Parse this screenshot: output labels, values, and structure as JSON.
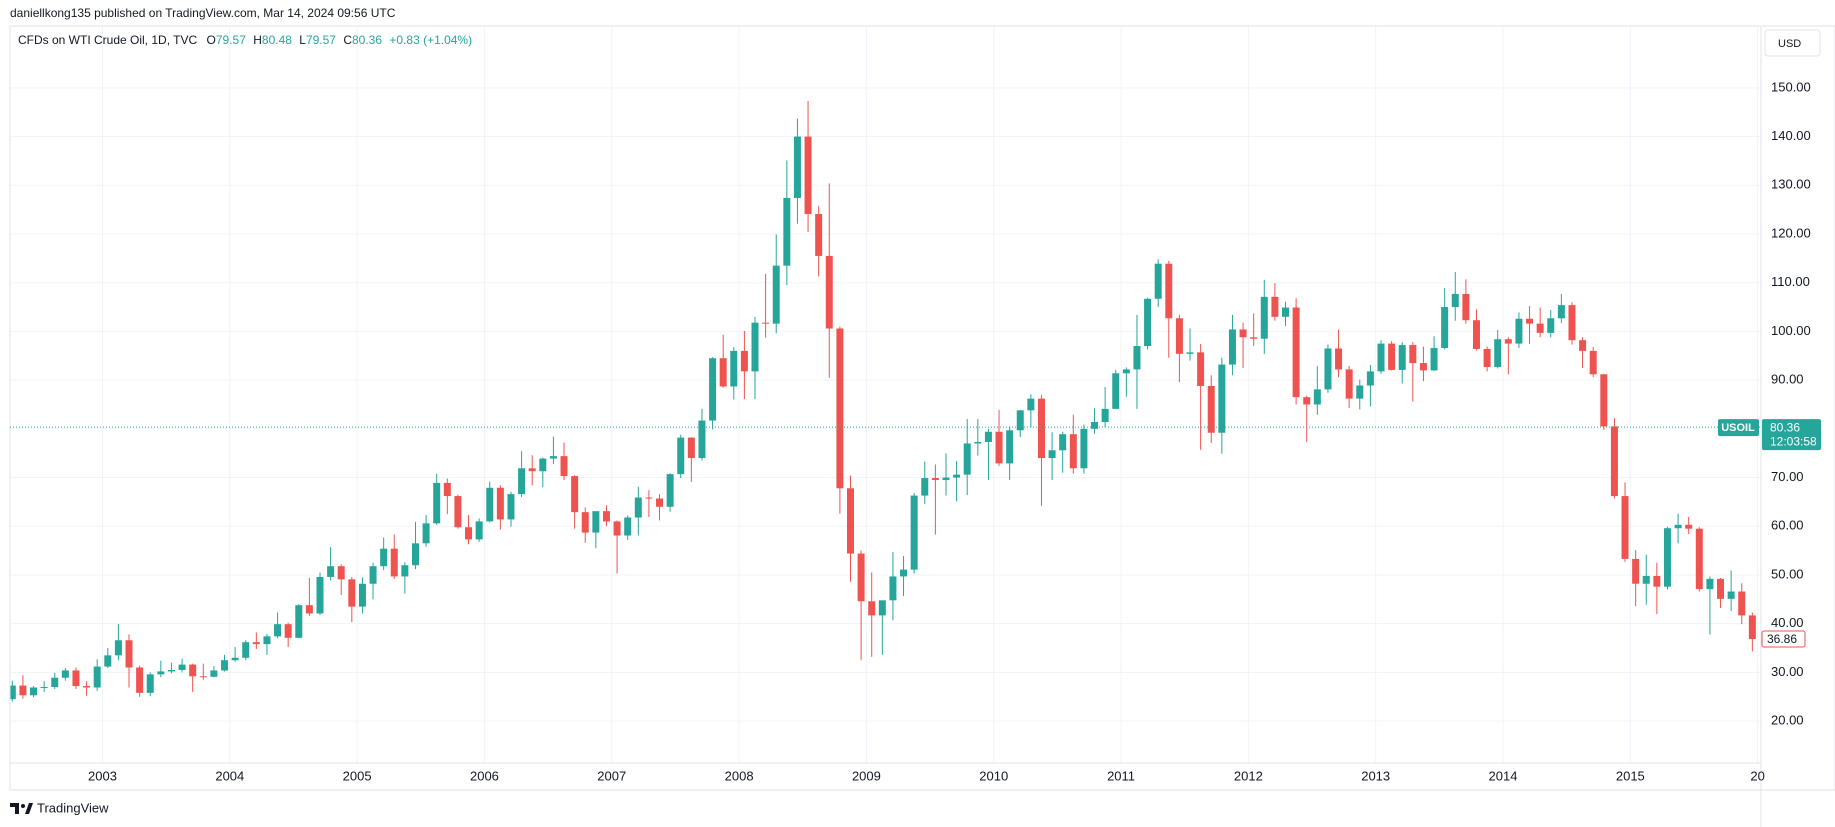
{
  "header": "daniellkong135 published on TradingView.com, Mar 14, 2024 09:56 UTC",
  "chart_data": {
    "type": "candlestick",
    "legend": {
      "name": "CFDs on WTI Crude Oil, 1D, TVC",
      "open_label": "O",
      "open": "79.57",
      "high_label": "H",
      "high": "80.48",
      "low_label": "L",
      "low": "79.57",
      "close_label": "C",
      "change": "+0.83 (+1.04%)"
    },
    "currency": "USD",
    "current_price": {
      "symbol": "USOIL",
      "value": 80.36,
      "countdown": "12:03:58"
    },
    "up_color": "#26a69a",
    "down_color": "#ef5350",
    "grid": true,
    "ylim": [
      11.4,
      162.7
    ],
    "yticks": [
      {
        "value": 20,
        "label": "20.00"
      },
      {
        "value": 30,
        "label": "30.00"
      },
      {
        "value": 40,
        "label": "40.00"
      },
      {
        "value": 50,
        "label": "50.00"
      },
      {
        "value": 60,
        "label": "60.00"
      },
      {
        "value": 70,
        "label": "70.00"
      },
      {
        "value": 80,
        "label": "80.00"
      },
      {
        "value": 90,
        "label": "90.00"
      },
      {
        "value": 100,
        "label": "100.00"
      },
      {
        "value": 110,
        "label": "110.00"
      },
      {
        "value": 120,
        "label": "120.00"
      },
      {
        "value": 130,
        "label": "130.00"
      },
      {
        "value": 140,
        "label": "140.00"
      },
      {
        "value": 150,
        "label": "150.00"
      }
    ],
    "categories": [
      null,
      null,
      null,
      null,
      null,
      null,
      null,
      null,
      null,
      "2003",
      null,
      null,
      null,
      null,
      null,
      null,
      null,
      null,
      null,
      null,
      null,
      "2004",
      null,
      null,
      null,
      null,
      null,
      null,
      null,
      null,
      null,
      null,
      null,
      "2005",
      null,
      null,
      null,
      null,
      null,
      null,
      null,
      null,
      null,
      null,
      null,
      "2006",
      null,
      null,
      null,
      null,
      null,
      null,
      null,
      null,
      null,
      null,
      null,
      "2007",
      null,
      null,
      null,
      null,
      null,
      null,
      null,
      null,
      null,
      null,
      null,
      "2008",
      null,
      null,
      null,
      null,
      null,
      null,
      null,
      null,
      null,
      null,
      null,
      "2009",
      null,
      null,
      null,
      null,
      null,
      null,
      null,
      null,
      null,
      null,
      null,
      "2010",
      null,
      null,
      null,
      null,
      null,
      null,
      null,
      null,
      null,
      null,
      null,
      "2011",
      null,
      null,
      null,
      null,
      null,
      null,
      null,
      null,
      null,
      null,
      null,
      "2012",
      null,
      null,
      null,
      null,
      null,
      null,
      null,
      null,
      null,
      null,
      null,
      "2013",
      null,
      null,
      null,
      null,
      null,
      null,
      null,
      null,
      null,
      null,
      null,
      "2014",
      null,
      null,
      null,
      null,
      null,
      null,
      null,
      null,
      null,
      null,
      null,
      "2015",
      null,
      null,
      null,
      null,
      null,
      null,
      null,
      null,
      null,
      null,
      null,
      "20"
    ],
    "ohlc": [
      [
        24.5,
        28.3,
        24.0,
        27.3
      ],
      [
        27.3,
        29.4,
        24.6,
        25.3
      ],
      [
        25.3,
        27.2,
        24.9,
        26.9
      ],
      [
        26.9,
        28.2,
        26.0,
        27.0
      ],
      [
        27.0,
        29.9,
        26.6,
        28.9
      ],
      [
        28.9,
        30.9,
        28.3,
        30.4
      ],
      [
        30.4,
        31.0,
        26.6,
        27.2
      ],
      [
        27.2,
        28.2,
        25.2,
        26.9
      ],
      [
        26.9,
        32.7,
        26.2,
        31.2
      ],
      [
        31.2,
        35.0,
        30.9,
        33.5
      ],
      [
        33.5,
        39.9,
        32.5,
        36.6
      ],
      [
        36.6,
        37.8,
        26.9,
        31.0
      ],
      [
        31.0,
        31.4,
        25.0,
        25.8
      ],
      [
        25.8,
        30.0,
        25.1,
        29.6
      ],
      [
        29.6,
        32.4,
        29.0,
        30.2
      ],
      [
        30.2,
        32.0,
        29.8,
        30.5
      ],
      [
        30.5,
        32.8,
        30.0,
        31.6
      ],
      [
        31.6,
        31.8,
        26.0,
        29.2
      ],
      [
        29.2,
        31.8,
        28.5,
        29.1
      ],
      [
        29.1,
        31.3,
        29.0,
        30.4
      ],
      [
        30.4,
        33.6,
        30.2,
        32.5
      ],
      [
        32.5,
        35.2,
        32.2,
        33.0
      ],
      [
        33.0,
        36.6,
        32.5,
        36.2
      ],
      [
        36.2,
        38.2,
        34.8,
        35.8
      ],
      [
        35.8,
        37.9,
        33.6,
        37.4
      ],
      [
        37.4,
        42.3,
        37.0,
        39.9
      ],
      [
        39.9,
        40.2,
        35.2,
        37.1
      ],
      [
        37.1,
        44.0,
        37.0,
        43.8
      ],
      [
        43.8,
        49.4,
        41.6,
        42.1
      ],
      [
        42.1,
        50.5,
        41.8,
        49.6
      ],
      [
        49.6,
        55.7,
        48.9,
        51.8
      ],
      [
        51.8,
        52.2,
        45.9,
        49.1
      ],
      [
        49.1,
        49.6,
        40.3,
        43.5
      ],
      [
        43.5,
        49.5,
        42.1,
        48.2
      ],
      [
        48.2,
        52.5,
        45.0,
        51.8
      ],
      [
        51.8,
        57.7,
        51.0,
        55.4
      ],
      [
        55.4,
        58.3,
        49.2,
        49.7
      ],
      [
        49.7,
        52.6,
        46.2,
        52.0
      ],
      [
        52.0,
        60.9,
        51.2,
        56.5
      ],
      [
        56.5,
        62.3,
        55.8,
        60.6
      ],
      [
        60.6,
        70.8,
        60.3,
        68.9
      ],
      [
        68.9,
        69.8,
        62.5,
        66.2
      ],
      [
        66.2,
        66.5,
        59.5,
        59.8
      ],
      [
        59.8,
        62.3,
        56.3,
        57.3
      ],
      [
        57.3,
        61.6,
        56.8,
        61.0
      ],
      [
        61.0,
        69.2,
        60.8,
        67.9
      ],
      [
        67.9,
        68.4,
        59.3,
        61.4
      ],
      [
        61.4,
        67.1,
        59.9,
        66.6
      ],
      [
        66.6,
        75.4,
        66.0,
        71.9
      ],
      [
        71.9,
        74.6,
        68.4,
        71.3
      ],
      [
        71.3,
        74.1,
        68.0,
        73.9
      ],
      [
        73.9,
        78.4,
        72.8,
        74.4
      ],
      [
        74.4,
        77.2,
        69.5,
        70.3
      ],
      [
        70.3,
        70.5,
        59.5,
        62.9
      ],
      [
        62.9,
        63.9,
        56.6,
        58.7
      ],
      [
        58.7,
        62.8,
        55.5,
        63.1
      ],
      [
        63.1,
        64.3,
        60.0,
        61.0
      ],
      [
        61.0,
        61.2,
        50.3,
        58.1
      ],
      [
        58.1,
        62.2,
        57.2,
        61.8
      ],
      [
        61.8,
        68.1,
        58.1,
        65.9
      ],
      [
        65.9,
        67.4,
        61.9,
        65.7
      ],
      [
        65.7,
        66.6,
        61.2,
        64.0
      ],
      [
        64.0,
        70.9,
        63.0,
        70.7
      ],
      [
        70.7,
        78.8,
        69.9,
        78.2
      ],
      [
        78.2,
        78.3,
        69.1,
        74.0
      ],
      [
        74.0,
        84.1,
        73.5,
        81.7
      ],
      [
        81.7,
        94.7,
        79.9,
        94.5
      ],
      [
        94.5,
        99.3,
        88.4,
        88.7
      ],
      [
        88.7,
        96.8,
        86.0,
        96.0
      ],
      [
        96.0,
        100.1,
        86.1,
        91.8
      ],
      [
        91.8,
        103.0,
        86.1,
        101.8
      ],
      [
        101.8,
        111.8,
        98.7,
        101.6
      ],
      [
        101.6,
        119.9,
        99.6,
        113.5
      ],
      [
        113.5,
        135.1,
        109.5,
        127.4
      ],
      [
        127.4,
        143.7,
        122.1,
        140.0
      ],
      [
        140.0,
        147.3,
        120.4,
        124.1
      ],
      [
        124.1,
        125.7,
        111.3,
        115.5
      ],
      [
        115.5,
        130.4,
        90.5,
        100.6
      ],
      [
        100.6,
        101.0,
        62.6,
        67.8
      ],
      [
        67.8,
        70.4,
        48.6,
        54.4
      ],
      [
        54.4,
        55.0,
        32.5,
        44.6
      ],
      [
        44.6,
        50.5,
        33.2,
        41.7
      ],
      [
        41.7,
        43.0,
        33.6,
        44.8
      ],
      [
        44.8,
        54.7,
        40.7,
        49.7
      ],
      [
        49.7,
        53.9,
        45.7,
        51.1
      ],
      [
        51.1,
        66.8,
        50.3,
        66.3
      ],
      [
        66.3,
        73.3,
        64.6,
        69.9
      ],
      [
        69.9,
        72.7,
        58.3,
        69.5
      ],
      [
        69.5,
        75.0,
        66.3,
        70.0
      ],
      [
        70.0,
        73.4,
        65.1,
        70.6
      ],
      [
        70.6,
        82.0,
        66.4,
        77.0
      ],
      [
        77.0,
        82.0,
        74.5,
        77.3
      ],
      [
        77.3,
        80.0,
        69.5,
        79.4
      ],
      [
        79.4,
        83.9,
        72.4,
        72.9
      ],
      [
        72.9,
        80.5,
        69.5,
        79.7
      ],
      [
        79.7,
        83.9,
        78.3,
        83.8
      ],
      [
        83.8,
        87.1,
        80.3,
        86.2
      ],
      [
        86.2,
        87.0,
        64.2,
        74.0
      ],
      [
        74.0,
        79.3,
        69.5,
        75.6
      ],
      [
        75.6,
        79.4,
        71.0,
        78.9
      ],
      [
        78.9,
        82.9,
        70.8,
        71.9
      ],
      [
        71.9,
        80.9,
        70.8,
        80.0
      ],
      [
        80.0,
        84.2,
        79.0,
        81.4
      ],
      [
        81.4,
        88.6,
        80.3,
        84.1
      ],
      [
        84.1,
        92.1,
        84.0,
        91.4
      ],
      [
        91.4,
        92.6,
        86.6,
        92.2
      ],
      [
        92.2,
        103.4,
        84.1,
        97.0
      ],
      [
        97.0,
        106.9,
        96.3,
        106.7
      ],
      [
        106.7,
        114.8,
        105.0,
        113.9
      ],
      [
        113.9,
        114.5,
        94.6,
        102.7
      ],
      [
        102.7,
        103.4,
        89.6,
        95.4
      ],
      [
        95.4,
        100.6,
        94.0,
        95.7
      ],
      [
        95.7,
        97.4,
        75.7,
        88.8
      ],
      [
        88.8,
        91.0,
        77.1,
        79.2
      ],
      [
        79.2,
        94.6,
        74.9,
        93.2
      ],
      [
        93.2,
        103.4,
        91.0,
        100.4
      ],
      [
        100.4,
        101.8,
        92.5,
        98.8
      ],
      [
        98.8,
        103.7,
        97.0,
        98.5
      ],
      [
        98.5,
        110.6,
        95.4,
        107.1
      ],
      [
        107.1,
        109.9,
        102.2,
        103.0
      ],
      [
        103.0,
        106.1,
        101.1,
        104.9
      ],
      [
        104.9,
        106.8,
        85.0,
        86.5
      ],
      [
        86.5,
        86.8,
        77.3,
        85.0
      ],
      [
        85.0,
        92.9,
        82.9,
        88.1
      ],
      [
        88.1,
        97.3,
        87.4,
        96.5
      ],
      [
        96.5,
        100.4,
        90.6,
        92.2
      ],
      [
        92.2,
        92.9,
        84.3,
        86.2
      ],
      [
        86.2,
        90.1,
        84.0,
        88.9
      ],
      [
        88.9,
        93.1,
        84.6,
        91.8
      ],
      [
        91.8,
        98.2,
        91.3,
        97.5
      ],
      [
        97.5,
        98.0,
        92.0,
        92.1
      ],
      [
        92.1,
        97.8,
        89.3,
        97.2
      ],
      [
        97.2,
        97.8,
        85.6,
        93.5
      ],
      [
        93.5,
        96.9,
        89.8,
        92.0
      ],
      [
        92.0,
        99.0,
        91.9,
        96.6
      ],
      [
        96.6,
        108.9,
        96.3,
        105.0
      ],
      [
        105.0,
        112.2,
        102.2,
        107.7
      ],
      [
        107.7,
        110.7,
        101.6,
        102.3
      ],
      [
        102.3,
        104.5,
        96.1,
        96.4
      ],
      [
        96.4,
        96.9,
        91.8,
        92.7
      ],
      [
        92.7,
        100.3,
        92.4,
        98.4
      ],
      [
        98.4,
        98.8,
        91.2,
        97.5
      ],
      [
        97.5,
        103.9,
        96.6,
        102.6
      ],
      [
        102.6,
        105.2,
        97.4,
        101.6
      ],
      [
        101.6,
        104.9,
        98.8,
        99.7
      ],
      [
        99.7,
        104.4,
        98.8,
        102.7
      ],
      [
        102.7,
        107.7,
        101.7,
        105.4
      ],
      [
        105.4,
        106.0,
        97.3,
        98.2
      ],
      [
        98.2,
        98.8,
        92.5,
        96.0
      ],
      [
        96.0,
        96.8,
        90.6,
        91.2
      ],
      [
        91.2,
        91.3,
        79.8,
        80.5
      ],
      [
        80.5,
        82.2,
        65.7,
        66.2
      ],
      [
        66.2,
        69.0,
        52.7,
        53.3
      ],
      [
        53.3,
        55.1,
        43.6,
        48.2
      ],
      [
        48.2,
        54.2,
        43.9,
        49.8
      ],
      [
        49.8,
        52.5,
        42.0,
        47.6
      ],
      [
        47.6,
        59.9,
        47.0,
        59.6
      ],
      [
        59.6,
        62.6,
        56.5,
        60.3
      ],
      [
        60.3,
        61.9,
        58.4,
        59.5
      ],
      [
        59.5,
        59.8,
        46.6,
        47.1
      ],
      [
        47.1,
        49.7,
        37.8,
        49.2
      ],
      [
        49.2,
        49.4,
        43.2,
        45.1
      ],
      [
        45.1,
        50.9,
        42.6,
        46.6
      ],
      [
        46.6,
        48.3,
        39.9,
        41.7
      ],
      [
        41.7,
        42.3,
        34.3,
        36.86
      ],
      null
    ]
  },
  "footer": "TradingView"
}
